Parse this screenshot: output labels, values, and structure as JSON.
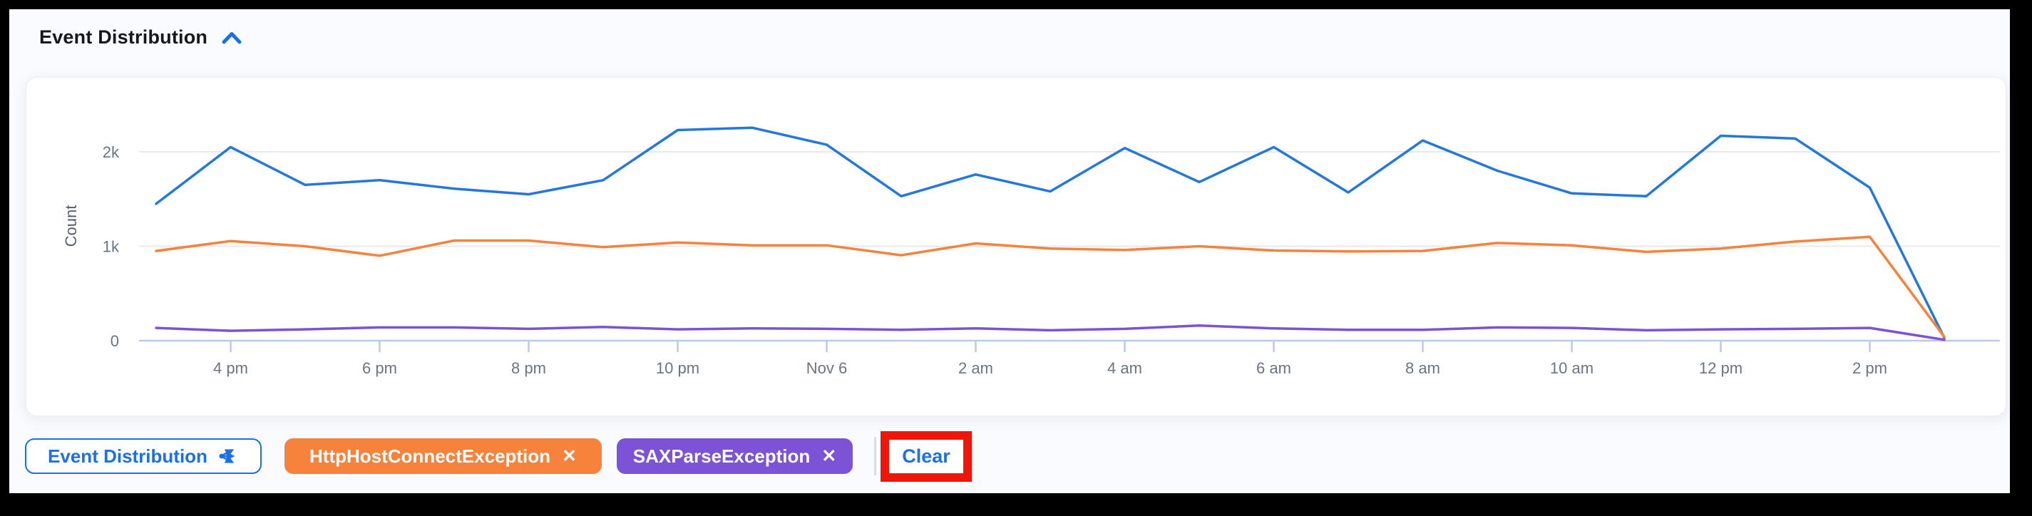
{
  "window": {
    "frame_color": "#000000",
    "page_bg": "#fafbfe"
  },
  "panel": {
    "title": "Event Distribution",
    "collapse_icon": "chevron-up",
    "accent_color": "#1c6fe8"
  },
  "chart_data": {
    "type": "line",
    "title": "Event Distribution",
    "ylabel": "Count",
    "xlabel": "",
    "ylim": [
      0,
      2500
    ],
    "grid": "horizontal",
    "legend": "none",
    "x_interval": "1 hour",
    "yticks": [
      {
        "label": "0",
        "value": 0
      },
      {
        "label": "1k",
        "value": 1000
      },
      {
        "label": "2k",
        "value": 2000
      }
    ],
    "xticks": [
      {
        "label": "4 pm",
        "index": 1
      },
      {
        "label": "6 pm",
        "index": 3
      },
      {
        "label": "8 pm",
        "index": 5
      },
      {
        "label": "10 pm",
        "index": 7
      },
      {
        "label": "Nov 6",
        "index": 9
      },
      {
        "label": "2 am",
        "index": 11
      },
      {
        "label": "4 am",
        "index": 13
      },
      {
        "label": "6 am",
        "index": 15
      },
      {
        "label": "8 am",
        "index": 17
      },
      {
        "label": "10 am",
        "index": 19
      },
      {
        "label": "12 pm",
        "index": 21
      },
      {
        "label": "2 pm",
        "index": 23
      }
    ],
    "series": [
      {
        "name": "",
        "color": "#2477dc",
        "values": [
          1450,
          2050,
          1650,
          1700,
          1610,
          1550,
          1700,
          2230,
          2255,
          2075,
          1530,
          1760,
          1580,
          2040,
          1680,
          2050,
          1570,
          2120,
          1800,
          1560,
          1530,
          2170,
          2140,
          1620,
          30
        ]
      },
      {
        "name": "HttpHostConnectException",
        "color": "#f6823b",
        "values": [
          950,
          1055,
          1000,
          900,
          1060,
          1060,
          990,
          1040,
          1010,
          1010,
          905,
          1030,
          975,
          960,
          1000,
          955,
          945,
          950,
          1035,
          1010,
          940,
          975,
          1050,
          1100,
          40
        ]
      },
      {
        "name": "SAXParseException",
        "color": "#7c52d6",
        "values": [
          135,
          105,
          120,
          140,
          140,
          125,
          145,
          120,
          130,
          125,
          115,
          130,
          110,
          125,
          160,
          130,
          115,
          115,
          140,
          135,
          110,
          120,
          125,
          135,
          10
        ]
      }
    ]
  },
  "footer": {
    "chart_selector": {
      "label": "Event Distribution",
      "icon": "share-branch"
    },
    "filter_chips": [
      {
        "label": "HttpHostConnectException",
        "remove_icon": "✕",
        "color": "#f6823b"
      },
      {
        "label": "SAXParseException",
        "remove_icon": "✕",
        "color": "#7c52d6"
      }
    ],
    "clear_button": {
      "label": "Clear",
      "text_color": "#1c6fe8"
    },
    "annotation": {
      "shape": "highlight-box",
      "color": "#ee1509",
      "target": "clear-button"
    }
  }
}
